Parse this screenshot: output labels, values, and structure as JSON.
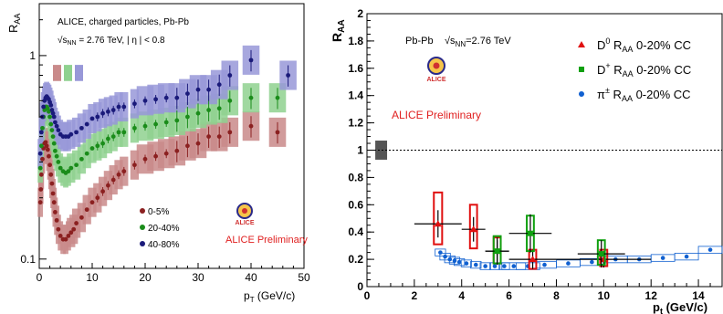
{
  "chart_data": [
    {
      "type": "scatter",
      "title": "ALICE, charged particles, Pb-Pb",
      "subtitle_prefix": "√s",
      "subtitle_sub": "NN",
      "subtitle_suffix": " = 2.76 TeV, | η | < 0.8",
      "ylabel_main": "R",
      "ylabel_sub": "AA",
      "xlabel_main": "p",
      "xlabel_sub": "T",
      "xlabel_suffix": " (GeV/c)",
      "xlim": [
        0,
        50
      ],
      "ylim": [
        0.09,
        1.8
      ],
      "yscale": "log",
      "xticks": [
        0,
        10,
        20,
        30,
        40,
        50
      ],
      "yticks": [
        {
          "v": 0.1,
          "label": "0.1"
        },
        {
          "v": 1,
          "label": "1"
        }
      ],
      "preliminary": "ALICE Preliminary",
      "logo_text": "ALICE",
      "series": [
        {
          "name": "0-5%",
          "color": "#8b2020",
          "band": "#c98a8a",
          "x": [
            0.2,
            0.3,
            0.4,
            0.6,
            0.8,
            1.0,
            1.2,
            1.4,
            1.6,
            1.8,
            2.0,
            2.2,
            2.4,
            2.6,
            2.8,
            3.0,
            3.3,
            3.6,
            4.0,
            4.5,
            5.0,
            5.5,
            6.0,
            6.5,
            7.0,
            8.0,
            9.0,
            10.0,
            11.0,
            12.0,
            13.0,
            14.0,
            15.0,
            16.0,
            18.0,
            20.0,
            22.0,
            24.0,
            26.0,
            28.0,
            30.0,
            32.0,
            34.0,
            36.0,
            40.0,
            45.0
          ],
          "y": [
            0.19,
            0.22,
            0.26,
            0.31,
            0.35,
            0.37,
            0.375,
            0.36,
            0.345,
            0.32,
            0.29,
            0.26,
            0.235,
            0.21,
            0.19,
            0.17,
            0.155,
            0.14,
            0.13,
            0.125,
            0.125,
            0.13,
            0.135,
            0.14,
            0.15,
            0.16,
            0.175,
            0.19,
            0.2,
            0.215,
            0.23,
            0.245,
            0.26,
            0.27,
            0.29,
            0.31,
            0.32,
            0.33,
            0.34,
            0.36,
            0.37,
            0.4,
            0.4,
            0.42,
            0.45,
            0.42
          ]
        },
        {
          "name": "20-40%",
          "color": "#1a8c1a",
          "band": "#8fd18f",
          "x": [
            0.2,
            0.4,
            0.6,
            0.8,
            1.0,
            1.2,
            1.4,
            1.6,
            1.8,
            2.0,
            2.2,
            2.4,
            2.6,
            2.8,
            3.0,
            3.3,
            3.6,
            4.0,
            4.5,
            5.0,
            5.5,
            6.0,
            7.0,
            8.0,
            9.0,
            10.0,
            11.0,
            12.0,
            13.0,
            14.0,
            15.0,
            16.0,
            18.0,
            20.0,
            22.0,
            24.0,
            26.0,
            28.0,
            30.0,
            32.0,
            34.0,
            36.0,
            40.0,
            45.0
          ],
          "y": [
            0.28,
            0.36,
            0.44,
            0.5,
            0.54,
            0.56,
            0.56,
            0.55,
            0.53,
            0.5,
            0.46,
            0.43,
            0.4,
            0.37,
            0.34,
            0.32,
            0.3,
            0.28,
            0.27,
            0.265,
            0.27,
            0.28,
            0.29,
            0.31,
            0.33,
            0.35,
            0.36,
            0.37,
            0.39,
            0.4,
            0.42,
            0.42,
            0.44,
            0.45,
            0.46,
            0.47,
            0.48,
            0.5,
            0.52,
            0.54,
            0.55,
            0.6,
            0.62,
            0.62
          ]
        },
        {
          "name": "40-80%",
          "color": "#1a1a7a",
          "band": "#9898d8",
          "x": [
            0.2,
            0.4,
            0.6,
            0.8,
            1.0,
            1.2,
            1.4,
            1.6,
            1.8,
            2.0,
            2.2,
            2.4,
            2.6,
            2.8,
            3.0,
            3.3,
            3.6,
            4.0,
            4.5,
            5.0,
            5.5,
            6.0,
            7.0,
            8.0,
            9.0,
            10.0,
            11.0,
            12.0,
            13.0,
            14.0,
            15.0,
            16.0,
            18.0,
            20.0,
            22.0,
            24.0,
            26.0,
            28.0,
            30.0,
            32.0,
            34.0,
            36.0,
            40.0,
            47.0
          ],
          "y": [
            0.33,
            0.42,
            0.5,
            0.56,
            0.6,
            0.62,
            0.63,
            0.62,
            0.61,
            0.59,
            0.57,
            0.54,
            0.52,
            0.5,
            0.47,
            0.45,
            0.43,
            0.41,
            0.4,
            0.4,
            0.4,
            0.41,
            0.42,
            0.44,
            0.46,
            0.49,
            0.5,
            0.52,
            0.53,
            0.54,
            0.56,
            0.56,
            0.58,
            0.6,
            0.61,
            0.62,
            0.62,
            0.65,
            0.68,
            0.68,
            0.72,
            0.8,
            0.95,
            0.8
          ]
        }
      ],
      "norm_boxes": [
        "#c98a8a",
        "#8fd18f",
        "#9898d8"
      ]
    },
    {
      "type": "scatter",
      "title": "Pb-Pb",
      "subtitle_prefix": "√s",
      "subtitle_sub": "NN",
      "subtitle_suffix": "=2.76 TeV",
      "ylabel_main": "R",
      "ylabel_sub": "AA",
      "xlabel_main": "p",
      "xlabel_sub": "t",
      "xlabel_suffix": " (GeV/c)",
      "xlim": [
        0,
        15
      ],
      "ylim": [
        0,
        2
      ],
      "xticks": [
        0,
        2,
        4,
        6,
        8,
        10,
        12,
        14
      ],
      "yticks": [
        0,
        0.2,
        0.4,
        0.6,
        0.8,
        1,
        1.2,
        1.4,
        1.6,
        1.8,
        2
      ],
      "reference_line": 1,
      "preliminary": "ALICE Preliminary",
      "logo_text": "ALICE",
      "series": [
        {
          "name": "D0 RAA 0-20% CC",
          "label_main": "D",
          "label_sup": "0",
          "label_rest": " R",
          "label_sub": "AA",
          "label_tail": " 0-20% CC",
          "color": "#e01010",
          "marker": "triangle",
          "points": [
            {
              "x": 3.0,
              "y": 0.46,
              "xerr": 1.0,
              "yerr": 0.1,
              "sys_lo": 0.31,
              "sys_hi": 0.69,
              "sys_w": 0.35
            },
            {
              "x": 4.5,
              "y": 0.42,
              "xerr": 0.5,
              "yerr": 0.09,
              "sys_lo": 0.28,
              "sys_hi": 0.6,
              "sys_w": 0.3
            },
            {
              "x": 5.5,
              "y": 0.26,
              "xerr": 0.5,
              "yerr": 0.08,
              "sys_lo": 0.17,
              "sys_hi": 0.36,
              "sys_w": 0.3
            },
            {
              "x": 7.0,
              "y": 0.2,
              "xerr": 1.0,
              "yerr": 0.07,
              "sys_lo": 0.13,
              "sys_hi": 0.27,
              "sys_w": 0.3
            },
            {
              "x": 10.0,
              "y": 0.2,
              "xerr": 2.0,
              "yerr": 0.06,
              "sys_lo": 0.15,
              "sys_hi": 0.27,
              "sys_w": 0.3
            }
          ]
        },
        {
          "name": "D+ RAA 0-20% CC",
          "label_main": "D",
          "label_sup": "+",
          "label_rest": " R",
          "label_sub": "AA",
          "label_tail": " 0-20% CC",
          "color": "#10a010",
          "marker": "square",
          "points": [
            {
              "x": 5.5,
              "y": 0.26,
              "xerr": 0.5,
              "yerr": 0.1,
              "sys_lo": 0.17,
              "sys_hi": 0.37,
              "sys_w": 0.3
            },
            {
              "x": 6.9,
              "y": 0.39,
              "xerr": 0.9,
              "yerr": 0.14,
              "sys_lo": 0.26,
              "sys_hi": 0.52,
              "sys_w": 0.3
            },
            {
              "x": 9.9,
              "y": 0.24,
              "xerr": 1.0,
              "yerr": 0.1,
              "sys_lo": 0.16,
              "sys_hi": 0.34,
              "sys_w": 0.3
            }
          ]
        },
        {
          "name": "π± RAA 0-20% CC",
          "label_main": "π",
          "label_sup": "±",
          "label_rest": " R",
          "label_sub": "AA",
          "label_tail": " 0-20% CC",
          "color": "#1060d0",
          "marker": "circle",
          "points": [
            {
              "x": 3.1,
              "y": 0.25
            },
            {
              "x": 3.3,
              "y": 0.22
            },
            {
              "x": 3.5,
              "y": 0.2
            },
            {
              "x": 3.7,
              "y": 0.19
            },
            {
              "x": 3.9,
              "y": 0.18
            },
            {
              "x": 4.2,
              "y": 0.17
            },
            {
              "x": 4.6,
              "y": 0.16
            },
            {
              "x": 5.0,
              "y": 0.15
            },
            {
              "x": 5.4,
              "y": 0.15
            },
            {
              "x": 5.8,
              "y": 0.15
            },
            {
              "x": 6.2,
              "y": 0.15
            },
            {
              "x": 6.8,
              "y": 0.15
            },
            {
              "x": 7.5,
              "y": 0.16
            },
            {
              "x": 8.5,
              "y": 0.17
            },
            {
              "x": 9.5,
              "y": 0.18
            },
            {
              "x": 10.5,
              "y": 0.2
            },
            {
              "x": 11.5,
              "y": 0.2
            },
            {
              "x": 12.5,
              "y": 0.21
            },
            {
              "x": 13.5,
              "y": 0.22
            },
            {
              "x": 14.5,
              "y": 0.27
            }
          ]
        }
      ]
    }
  ]
}
